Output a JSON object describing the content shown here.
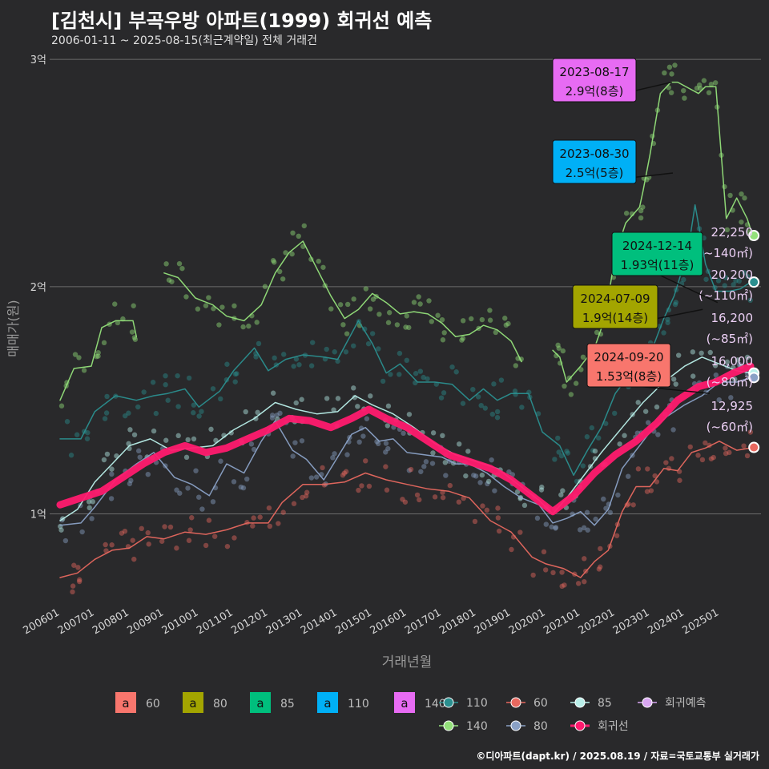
{
  "title": "[김천시] 부곡우방 아파트(1999) 회귀선 예측",
  "subtitle": "2006-01-11 ~ 2025-08-15(최근계약일) 전체 거래건",
  "credit": "©디아파트(dapt.kr) / 2025.08.19 / 자료=국토교통부 실거래가",
  "colors": {
    "bg": "#29292b",
    "grid": "#6b6b6b",
    "s60": "#f8766d",
    "s80": "#a3a500",
    "s85": "#00bf7d",
    "s110": "#00b0f6",
    "s140": "#e76bf3",
    "line110": "#2a8f8f",
    "line60": "#e8685f",
    "line85": "#b9f0ea",
    "line140": "#93e07a",
    "line80": "#8aa1c6",
    "regression": "#ff1a6e",
    "forecast": "#d9a6f2"
  },
  "chart_data": {
    "type": "line",
    "xlabel": "거래년월",
    "ylabel": "매매가(원)",
    "x_range": [
      "2006-01",
      "2025-12"
    ],
    "ylim": [
      0.6,
      3.05
    ],
    "y_ticks": [
      {
        "v": 1,
        "label": "1억"
      },
      {
        "v": 2,
        "label": "2억"
      },
      {
        "v": 3,
        "label": "3억"
      }
    ],
    "x_ticks": [
      "200601",
      "200701",
      "200801",
      "200901",
      "201001",
      "201101",
      "201201",
      "201301",
      "201401",
      "201501",
      "201601",
      "201701",
      "201801",
      "201901",
      "202001",
      "202101",
      "202201",
      "202301",
      "202401",
      "202501"
    ],
    "series": [
      {
        "name": "140",
        "key": "line140",
        "points": [
          [
            2006.0,
            1.5
          ],
          [
            2006.4,
            1.64
          ],
          [
            2006.9,
            1.65
          ],
          [
            2007.2,
            1.82
          ],
          [
            2007.6,
            1.85
          ],
          [
            2008.1,
            1.85
          ],
          [
            2008.2,
            1.78
          ]
        ]
      },
      {
        "name": "140",
        "key": "line140",
        "points": [
          [
            2009.0,
            2.06
          ],
          [
            2009.4,
            2.04
          ],
          [
            2009.9,
            1.95
          ],
          [
            2010.4,
            1.92
          ],
          [
            2010.8,
            1.87
          ],
          [
            2011.3,
            1.85
          ],
          [
            2011.8,
            1.92
          ],
          [
            2012.2,
            2.06
          ],
          [
            2012.6,
            2.15
          ],
          [
            2013.0,
            2.2
          ],
          [
            2013.4,
            2.08
          ],
          [
            2013.8,
            1.96
          ],
          [
            2014.2,
            1.86
          ],
          [
            2014.6,
            1.9
          ],
          [
            2015.0,
            1.97
          ],
          [
            2015.4,
            1.93
          ],
          [
            2015.8,
            1.88
          ],
          [
            2016.2,
            1.89
          ],
          [
            2016.6,
            1.88
          ],
          [
            2017.0,
            1.84
          ],
          [
            2017.4,
            1.78
          ],
          [
            2017.8,
            1.79
          ],
          [
            2018.2,
            1.83
          ],
          [
            2018.6,
            1.81
          ],
          [
            2019.0,
            1.76
          ],
          [
            2019.3,
            1.67
          ]
        ]
      },
      {
        "name": "140",
        "key": "line140",
        "points": [
          [
            2020.2,
            1.72
          ],
          [
            2020.4,
            1.69
          ],
          [
            2020.6,
            1.58
          ],
          [
            2021.0,
            1.65
          ],
          [
            2021.4,
            1.73
          ],
          [
            2021.7,
            1.86
          ],
          [
            2022.0,
            2.14
          ],
          [
            2022.3,
            2.28
          ],
          [
            2022.7,
            2.35
          ],
          [
            2022.8,
            2.42
          ],
          [
            2023.0,
            2.58
          ],
          [
            2023.3,
            2.85
          ],
          [
            2023.6,
            2.9
          ],
          [
            2023.8,
            2.9
          ],
          [
            2024.4,
            2.85
          ],
          [
            2024.6,
            2.88
          ],
          [
            2024.9,
            2.88
          ],
          [
            2025.2,
            2.3
          ],
          [
            2025.5,
            2.39
          ],
          [
            2025.8,
            2.3
          ],
          [
            2025.95,
            2.23
          ]
        ]
      },
      {
        "name": "110",
        "key": "line110",
        "points": [
          [
            2006.0,
            1.33
          ],
          [
            2006.6,
            1.33
          ],
          [
            2007.0,
            1.45
          ],
          [
            2007.6,
            1.52
          ],
          [
            2008.2,
            1.5
          ],
          [
            2008.7,
            1.52
          ],
          [
            2009.1,
            1.53
          ],
          [
            2009.6,
            1.55
          ],
          [
            2010.0,
            1.47
          ],
          [
            2010.6,
            1.54
          ],
          [
            2011.0,
            1.63
          ],
          [
            2011.6,
            1.73
          ],
          [
            2012.0,
            1.63
          ],
          [
            2012.5,
            1.68
          ],
          [
            2013.0,
            1.7
          ],
          [
            2013.6,
            1.69
          ],
          [
            2014.0,
            1.68
          ],
          [
            2014.6,
            1.85
          ],
          [
            2015.0,
            1.75
          ],
          [
            2015.4,
            1.62
          ],
          [
            2015.8,
            1.66
          ],
          [
            2016.3,
            1.58
          ],
          [
            2016.8,
            1.58
          ],
          [
            2017.3,
            1.57
          ],
          [
            2017.8,
            1.5
          ],
          [
            2018.2,
            1.55
          ],
          [
            2018.6,
            1.5
          ],
          [
            2019.0,
            1.53
          ],
          [
            2019.5,
            1.53
          ],
          [
            2019.9,
            1.36
          ],
          [
            2020.4,
            1.3
          ],
          [
            2020.8,
            1.17
          ],
          [
            2021.2,
            1.28
          ],
          [
            2021.6,
            1.38
          ],
          [
            2022.0,
            1.53
          ],
          [
            2022.5,
            1.63
          ],
          [
            2023.0,
            1.7
          ],
          [
            2023.4,
            1.86
          ],
          [
            2023.7,
            1.96
          ],
          [
            2023.9,
            2.06
          ],
          [
            2024.1,
            2.16
          ],
          [
            2024.3,
            2.36
          ],
          [
            2024.6,
            2.1
          ],
          [
            2024.9,
            1.98
          ],
          [
            2025.3,
            1.98
          ],
          [
            2025.6,
            1.99
          ],
          [
            2025.9,
            2.02
          ]
        ]
      },
      {
        "name": "80",
        "key": "line80",
        "points": [
          [
            2006.0,
            0.95
          ],
          [
            2006.6,
            0.96
          ],
          [
            2007.0,
            1.03
          ],
          [
            2007.6,
            1.15
          ],
          [
            2008.2,
            1.22
          ],
          [
            2008.7,
            1.27
          ],
          [
            2009.3,
            1.16
          ],
          [
            2009.8,
            1.13
          ],
          [
            2010.3,
            1.08
          ],
          [
            2010.8,
            1.22
          ],
          [
            2011.3,
            1.18
          ],
          [
            2011.8,
            1.32
          ],
          [
            2012.2,
            1.41
          ],
          [
            2012.7,
            1.28
          ],
          [
            2013.1,
            1.24
          ],
          [
            2013.6,
            1.15
          ],
          [
            2014.0,
            1.25
          ],
          [
            2014.4,
            1.35
          ],
          [
            2014.8,
            1.38
          ],
          [
            2015.2,
            1.32
          ],
          [
            2015.6,
            1.33
          ],
          [
            2016.0,
            1.27
          ],
          [
            2016.5,
            1.26
          ],
          [
            2017.0,
            1.25
          ],
          [
            2017.4,
            1.22
          ],
          [
            2017.8,
            1.22
          ],
          [
            2018.3,
            1.18
          ],
          [
            2018.8,
            1.12
          ],
          [
            2019.3,
            1.07
          ],
          [
            2019.8,
            1.04
          ],
          [
            2020.2,
            0.96
          ],
          [
            2020.6,
            0.98
          ],
          [
            2021.0,
            1.01
          ],
          [
            2021.4,
            0.95
          ],
          [
            2021.8,
            1.02
          ],
          [
            2022.2,
            1.2
          ],
          [
            2022.6,
            1.28
          ],
          [
            2023.0,
            1.36
          ],
          [
            2023.5,
            1.43
          ],
          [
            2024.0,
            1.48
          ],
          [
            2024.5,
            1.52
          ],
          [
            2025.0,
            1.58
          ],
          [
            2025.5,
            1.58
          ],
          [
            2025.9,
            1.6
          ]
        ]
      },
      {
        "name": "85",
        "key": "line85",
        "points": [
          [
            2006.0,
            0.97
          ],
          [
            2006.5,
            1.02
          ],
          [
            2007.0,
            1.14
          ],
          [
            2007.5,
            1.22
          ],
          [
            2008.0,
            1.3
          ],
          [
            2008.6,
            1.33
          ],
          [
            2009.2,
            1.28
          ],
          [
            2009.8,
            1.29
          ],
          [
            2010.4,
            1.3
          ],
          [
            2011.0,
            1.37
          ],
          [
            2011.6,
            1.42
          ],
          [
            2012.2,
            1.49
          ],
          [
            2012.8,
            1.46
          ],
          [
            2013.4,
            1.44
          ],
          [
            2014.0,
            1.45
          ],
          [
            2014.5,
            1.52
          ],
          [
            2015.0,
            1.48
          ],
          [
            2015.6,
            1.44
          ],
          [
            2016.2,
            1.38
          ],
          [
            2016.8,
            1.31
          ],
          [
            2017.4,
            1.26
          ],
          [
            2018.0,
            1.23
          ],
          [
            2018.6,
            1.2
          ],
          [
            2019.2,
            1.13
          ],
          [
            2019.8,
            1.06
          ],
          [
            2020.2,
            1.0
          ],
          [
            2020.6,
            1.07
          ],
          [
            2021.0,
            1.15
          ],
          [
            2021.6,
            1.27
          ],
          [
            2022.2,
            1.38
          ],
          [
            2022.8,
            1.49
          ],
          [
            2023.4,
            1.58
          ],
          [
            2024.0,
            1.65
          ],
          [
            2024.5,
            1.69
          ],
          [
            2025.0,
            1.66
          ],
          [
            2025.5,
            1.63
          ],
          [
            2025.9,
            1.62
          ]
        ]
      },
      {
        "name": "60",
        "key": "line60",
        "points": [
          [
            2006.0,
            0.72
          ],
          [
            2006.5,
            0.74
          ],
          [
            2007.0,
            0.8
          ],
          [
            2007.5,
            0.84
          ],
          [
            2008.0,
            0.85
          ],
          [
            2008.5,
            0.9
          ],
          [
            2009.0,
            0.89
          ],
          [
            2009.6,
            0.92
          ],
          [
            2010.2,
            0.91
          ],
          [
            2010.8,
            0.93
          ],
          [
            2011.4,
            0.96
          ],
          [
            2012.0,
            0.96
          ],
          [
            2012.4,
            1.05
          ],
          [
            2013.0,
            1.13
          ],
          [
            2013.6,
            1.13
          ],
          [
            2014.2,
            1.14
          ],
          [
            2014.8,
            1.18
          ],
          [
            2015.4,
            1.15
          ],
          [
            2016.0,
            1.13
          ],
          [
            2016.6,
            1.11
          ],
          [
            2017.2,
            1.1
          ],
          [
            2017.8,
            1.07
          ],
          [
            2018.4,
            0.97
          ],
          [
            2019.0,
            0.92
          ],
          [
            2019.6,
            0.81
          ],
          [
            2020.0,
            0.78
          ],
          [
            2020.5,
            0.76
          ],
          [
            2021.0,
            0.72
          ],
          [
            2021.4,
            0.79
          ],
          [
            2021.8,
            0.84
          ],
          [
            2022.2,
            1.01
          ],
          [
            2022.6,
            1.12
          ],
          [
            2023.0,
            1.12
          ],
          [
            2023.4,
            1.2
          ],
          [
            2023.8,
            1.19
          ],
          [
            2024.2,
            1.27
          ],
          [
            2024.6,
            1.29
          ],
          [
            2025.0,
            1.32
          ],
          [
            2025.5,
            1.28
          ],
          [
            2025.9,
            1.29
          ]
        ]
      },
      {
        "name": "회귀선",
        "key": "regression",
        "points": [
          [
            2006.0,
            1.04
          ],
          [
            2006.6,
            1.07
          ],
          [
            2007.2,
            1.1
          ],
          [
            2007.8,
            1.16
          ],
          [
            2008.4,
            1.22
          ],
          [
            2009.0,
            1.27
          ],
          [
            2009.6,
            1.3
          ],
          [
            2010.2,
            1.27
          ],
          [
            2010.8,
            1.29
          ],
          [
            2011.4,
            1.33
          ],
          [
            2012.0,
            1.37
          ],
          [
            2012.6,
            1.42
          ],
          [
            2013.2,
            1.41
          ],
          [
            2013.8,
            1.38
          ],
          [
            2014.4,
            1.42
          ],
          [
            2014.9,
            1.46
          ],
          [
            2015.4,
            1.42
          ],
          [
            2016.0,
            1.38
          ],
          [
            2016.6,
            1.32
          ],
          [
            2017.2,
            1.26
          ],
          [
            2017.8,
            1.23
          ],
          [
            2018.4,
            1.2
          ],
          [
            2019.0,
            1.15
          ],
          [
            2019.6,
            1.08
          ],
          [
            2020.2,
            1.01
          ],
          [
            2020.8,
            1.08
          ],
          [
            2021.4,
            1.18
          ],
          [
            2022.0,
            1.26
          ],
          [
            2022.6,
            1.32
          ],
          [
            2023.2,
            1.4
          ],
          [
            2023.8,
            1.5
          ],
          [
            2024.4,
            1.56
          ],
          [
            2024.9,
            1.58
          ],
          [
            2025.4,
            1.62
          ],
          [
            2025.9,
            1.65
          ]
        ]
      }
    ],
    "forecast": [
      {
        "label": "22,250",
        "area": "(~140㎡)",
        "key": "line140",
        "y": 2.225
      },
      {
        "label": "20,200",
        "area": "(~110㎡)",
        "key": "line110",
        "y": 2.02
      },
      {
        "label": "16,200",
        "area": "(~85㎡)",
        "key": "line85",
        "y": 1.62
      },
      {
        "label": "16,000",
        "area": "(~80㎡)",
        "key": "line80",
        "y": 1.6
      },
      {
        "label": "12,925",
        "area": "(~60㎡)",
        "key": "line60",
        "y": 1.2925
      }
    ],
    "annotations": [
      {
        "date": "2023-08-17",
        "text": "2.9억(8층)",
        "key": "s140"
      },
      {
        "date": "2023-08-30",
        "text": "2.5억(5층)",
        "key": "s110"
      },
      {
        "date": "2024-12-14",
        "text": "1.93억(11층)",
        "key": "s85"
      },
      {
        "date": "2024-07-09",
        "text": "1.9억(14층)",
        "key": "s80"
      },
      {
        "date": "2024-09-20",
        "text": "1.53억(8층)",
        "key": "s60"
      }
    ],
    "legend_fill": [
      {
        "glyph": "a",
        "label": "60",
        "key": "s60"
      },
      {
        "glyph": "a",
        "label": "80",
        "key": "s80"
      },
      {
        "glyph": "a",
        "label": "85",
        "key": "s85"
      },
      {
        "glyph": "a",
        "label": "110",
        "key": "s110"
      },
      {
        "glyph": "a",
        "label": "140",
        "key": "s140"
      }
    ],
    "legend_line": [
      {
        "label": "110",
        "key": "line110"
      },
      {
        "label": "60",
        "key": "line60"
      },
      {
        "label": "85",
        "key": "line85"
      },
      {
        "label": "회귀예측",
        "key": "forecast"
      },
      {
        "label": "140",
        "key": "line140"
      },
      {
        "label": "80",
        "key": "line80"
      },
      {
        "label": "회귀선",
        "key": "regression"
      }
    ]
  }
}
